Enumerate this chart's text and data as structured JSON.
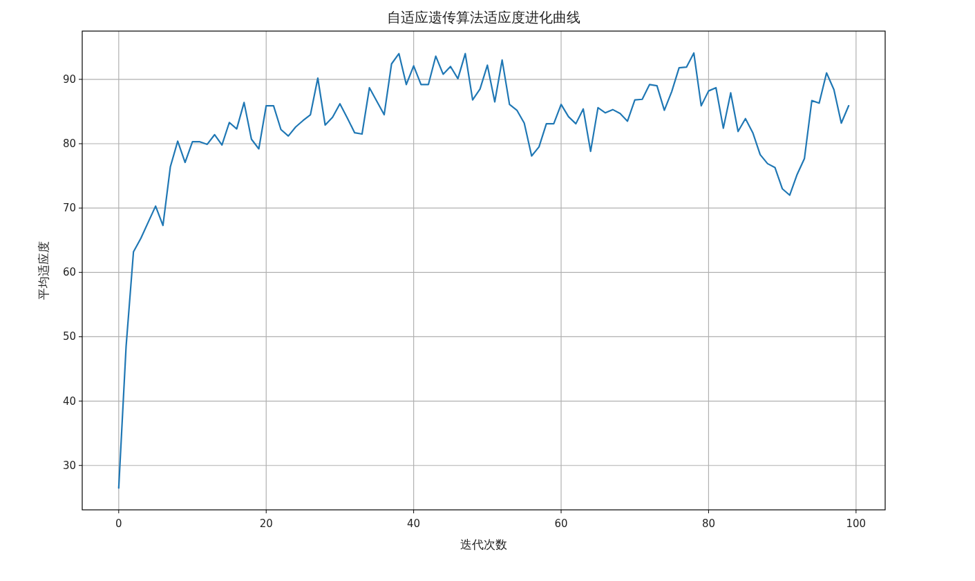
{
  "chart_data": {
    "type": "line",
    "title": "自适应遗传算法适应度进化曲线",
    "xlabel": "迭代次数",
    "ylabel": "平均适应度",
    "x": [
      0,
      1,
      2,
      3,
      4,
      5,
      6,
      7,
      8,
      9,
      10,
      11,
      12,
      13,
      14,
      15,
      16,
      17,
      18,
      19,
      20,
      21,
      22,
      23,
      24,
      25,
      26,
      27,
      28,
      29,
      30,
      31,
      32,
      33,
      34,
      35,
      36,
      37,
      38,
      39,
      40,
      41,
      42,
      43,
      44,
      45,
      46,
      47,
      48,
      49,
      50,
      51,
      52,
      53,
      54,
      55,
      56,
      57,
      58,
      59,
      60,
      61,
      62,
      63,
      64,
      65,
      66,
      67,
      68,
      69,
      70,
      71,
      72,
      73,
      74,
      75,
      76,
      77,
      78,
      79,
      80,
      81,
      82,
      83,
      84,
      85,
      86,
      87,
      88,
      89,
      90,
      91,
      92,
      93,
      94,
      95,
      96,
      97,
      98,
      99
    ],
    "series": [
      {
        "color": "#1f77b4",
        "values": [
          26.5,
          48.5,
          63.2,
          65.3,
          67.8,
          70.3,
          67.3,
          76.4,
          80.4,
          77.1,
          80.3,
          80.3,
          79.9,
          81.4,
          79.8,
          83.3,
          82.3,
          86.4,
          80.7,
          79.2,
          85.9,
          85.9,
          82.2,
          81.2,
          82.6,
          83.6,
          84.5,
          90.2,
          82.9,
          84.1,
          86.2,
          84.0,
          81.7,
          81.5,
          88.7,
          86.6,
          84.5,
          92.4,
          94.0,
          89.2,
          92.1,
          89.2,
          89.2,
          93.6,
          90.8,
          92.0,
          90.1,
          94.0,
          86.8,
          88.5,
          92.2,
          86.5,
          93.0,
          86.1,
          85.2,
          83.2,
          78.1,
          79.5,
          83.1,
          83.1,
          86.1,
          84.2,
          83.1,
          85.4,
          78.8,
          85.6,
          84.8,
          85.3,
          84.7,
          83.5,
          86.8,
          86.9,
          89.2,
          89.0,
          85.2,
          88.1,
          91.8,
          91.9,
          94.1,
          85.9,
          88.2,
          88.7,
          82.4,
          87.9,
          81.9,
          83.9,
          81.7,
          78.3,
          76.9,
          76.3,
          73.0,
          72.0,
          75.2,
          77.7,
          86.7,
          86.3,
          91.0,
          88.4,
          83.2,
          85.9
        ]
      }
    ],
    "xlim": [
      -4.95,
      103.95
    ],
    "ylim": [
      23.1,
      97.5
    ],
    "xticks": [
      0,
      20,
      40,
      60,
      80,
      100
    ],
    "yticks": [
      30,
      40,
      50,
      60,
      70,
      80,
      90
    ],
    "grid": true,
    "marker": "none",
    "line_style": "solid"
  }
}
